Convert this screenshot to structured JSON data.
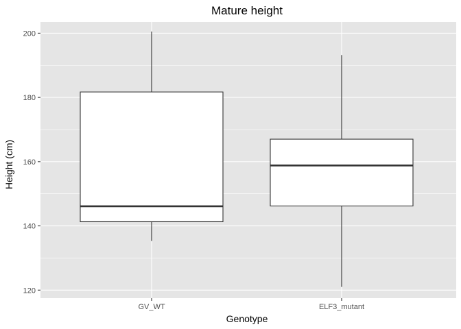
{
  "chart_data": {
    "type": "boxplot",
    "title": "Mature height",
    "xlabel": "Genotype",
    "ylabel": "Height (cm)",
    "ylim": [
      117.5,
      203.5
    ],
    "yticks": [
      120,
      140,
      160,
      180,
      200
    ],
    "ytick_labels": [
      "120",
      "140",
      "160",
      "180",
      "200"
    ],
    "categories": [
      "GV_WT",
      "ELF3_mutant"
    ],
    "boxes": [
      {
        "category": "GV_WT",
        "min": 135.3,
        "q1": 141.3,
        "median": 146.1,
        "q3": 181.7,
        "max": 200.5
      },
      {
        "category": "ELF3_mutant",
        "min": 121.0,
        "q1": 146.2,
        "median": 158.8,
        "q3": 167.0,
        "max": 193.2
      }
    ],
    "grid": true,
    "legend": "none",
    "colors": {
      "panel_background": "#e5e5e5",
      "grid_major": "#ffffff",
      "box_fill": "#ffffff",
      "box_line": "#333333",
      "tick_label": "#4d4d4d"
    }
  }
}
